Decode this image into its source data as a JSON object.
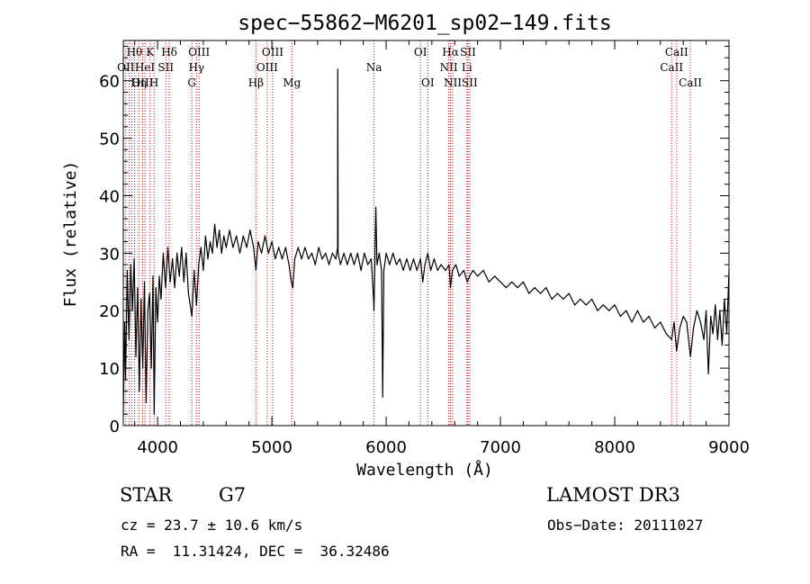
{
  "chart_data": {
    "type": "line",
    "title": "spec−55862−M6201_sp02−149.fits",
    "xlabel": "Wavelength (Å)",
    "ylabel": "Flux (relative)",
    "xlim": [
      3700,
      9000
    ],
    "ylim": [
      0,
      67
    ],
    "xticks": [
      4000,
      5000,
      6000,
      7000,
      8000,
      9000
    ],
    "yticks": [
      0,
      10,
      20,
      30,
      40,
      50,
      60
    ],
    "grid": false,
    "line_color": "#000000",
    "marker_color": "#cc0000",
    "series": [
      {
        "name": "flux",
        "points": [
          [
            3700,
            2
          ],
          [
            3712,
            18
          ],
          [
            3720,
            8
          ],
          [
            3735,
            27
          ],
          [
            3750,
            15
          ],
          [
            3765,
            28
          ],
          [
            3780,
            20
          ],
          [
            3795,
            29
          ],
          [
            3810,
            12
          ],
          [
            3825,
            24
          ],
          [
            3840,
            6
          ],
          [
            3855,
            22
          ],
          [
            3870,
            10
          ],
          [
            3885,
            25
          ],
          [
            3900,
            4
          ],
          [
            3915,
            20
          ],
          [
            3930,
            23
          ],
          [
            3945,
            10
          ],
          [
            3960,
            26
          ],
          [
            3970,
            2
          ],
          [
            3985,
            24
          ],
          [
            4000,
            18
          ],
          [
            4015,
            26
          ],
          [
            4030,
            22
          ],
          [
            4050,
            30
          ],
          [
            4070,
            24
          ],
          [
            4090,
            31
          ],
          [
            4110,
            25
          ],
          [
            4130,
            29
          ],
          [
            4150,
            24
          ],
          [
            4170,
            30
          ],
          [
            4190,
            26
          ],
          [
            4210,
            31
          ],
          [
            4230,
            25
          ],
          [
            4250,
            30
          ],
          [
            4270,
            23
          ],
          [
            4300,
            19
          ],
          [
            4320,
            27
          ],
          [
            4340,
            21
          ],
          [
            4360,
            28
          ],
          [
            4380,
            31
          ],
          [
            4400,
            27
          ],
          [
            4420,
            33
          ],
          [
            4440,
            29
          ],
          [
            4460,
            32
          ],
          [
            4480,
            30
          ],
          [
            4500,
            35
          ],
          [
            4520,
            31
          ],
          [
            4540,
            34
          ],
          [
            4560,
            30
          ],
          [
            4580,
            33
          ],
          [
            4600,
            31
          ],
          [
            4630,
            34
          ],
          [
            4660,
            31
          ],
          [
            4690,
            33
          ],
          [
            4720,
            30
          ],
          [
            4750,
            33
          ],
          [
            4780,
            31
          ],
          [
            4810,
            34
          ],
          [
            4840,
            31
          ],
          [
            4861,
            27
          ],
          [
            4880,
            32
          ],
          [
            4910,
            30
          ],
          [
            4940,
            33
          ],
          [
            4970,
            30
          ],
          [
            5000,
            32
          ],
          [
            5030,
            29
          ],
          [
            5060,
            31
          ],
          [
            5090,
            29
          ],
          [
            5120,
            31
          ],
          [
            5150,
            28
          ],
          [
            5170,
            25
          ],
          [
            5183,
            24
          ],
          [
            5200,
            29
          ],
          [
            5230,
            31
          ],
          [
            5260,
            29
          ],
          [
            5290,
            31
          ],
          [
            5320,
            29
          ],
          [
            5350,
            30
          ],
          [
            5380,
            28
          ],
          [
            5410,
            31
          ],
          [
            5440,
            29
          ],
          [
            5470,
            30
          ],
          [
            5500,
            28
          ],
          [
            5530,
            30
          ],
          [
            5560,
            29
          ],
          [
            5575,
            31
          ],
          [
            5577,
            62
          ],
          [
            5580,
            30
          ],
          [
            5600,
            28
          ],
          [
            5630,
            30
          ],
          [
            5660,
            28
          ],
          [
            5690,
            30
          ],
          [
            5720,
            28
          ],
          [
            5750,
            30
          ],
          [
            5780,
            27
          ],
          [
            5810,
            30
          ],
          [
            5840,
            28
          ],
          [
            5870,
            29
          ],
          [
            5890,
            22
          ],
          [
            5893,
            20
          ],
          [
            5896,
            23
          ],
          [
            5910,
            38
          ],
          [
            5920,
            28
          ],
          [
            5940,
            30
          ],
          [
            5960,
            27
          ],
          [
            5970,
            5
          ],
          [
            5980,
            27
          ],
          [
            6000,
            30
          ],
          [
            6030,
            28
          ],
          [
            6060,
            30
          ],
          [
            6090,
            28
          ],
          [
            6120,
            29
          ],
          [
            6150,
            27
          ],
          [
            6180,
            29
          ],
          [
            6210,
            27
          ],
          [
            6240,
            29
          ],
          [
            6270,
            27
          ],
          [
            6300,
            29
          ],
          [
            6320,
            25
          ],
          [
            6340,
            28
          ],
          [
            6364,
            30
          ],
          [
            6390,
            27
          ],
          [
            6420,
            29
          ],
          [
            6450,
            27
          ],
          [
            6480,
            28
          ],
          [
            6520,
            27
          ],
          [
            6550,
            28
          ],
          [
            6563,
            24
          ],
          [
            6580,
            27
          ],
          [
            6610,
            28
          ],
          [
            6640,
            26
          ],
          [
            6680,
            27
          ],
          [
            6710,
            25
          ],
          [
            6730,
            26
          ],
          [
            6760,
            27
          ],
          [
            6800,
            26
          ],
          [
            6850,
            27
          ],
          [
            6900,
            25
          ],
          [
            6950,
            26
          ],
          [
            7000,
            25
          ],
          [
            7050,
            24
          ],
          [
            7100,
            25
          ],
          [
            7150,
            24
          ],
          [
            7200,
            25
          ],
          [
            7250,
            23
          ],
          [
            7300,
            24
          ],
          [
            7350,
            23
          ],
          [
            7400,
            24
          ],
          [
            7450,
            22
          ],
          [
            7500,
            23
          ],
          [
            7550,
            22
          ],
          [
            7600,
            23
          ],
          [
            7650,
            21
          ],
          [
            7700,
            22
          ],
          [
            7750,
            21
          ],
          [
            7800,
            22
          ],
          [
            7850,
            20
          ],
          [
            7900,
            21
          ],
          [
            7950,
            20
          ],
          [
            8000,
            21
          ],
          [
            8050,
            19
          ],
          [
            8100,
            20
          ],
          [
            8150,
            18
          ],
          [
            8200,
            20
          ],
          [
            8250,
            18
          ],
          [
            8300,
            19
          ],
          [
            8350,
            17
          ],
          [
            8400,
            18
          ],
          [
            8450,
            16
          ],
          [
            8498,
            15
          ],
          [
            8520,
            18
          ],
          [
            8542,
            13
          ],
          [
            8570,
            17
          ],
          [
            8600,
            19
          ],
          [
            8630,
            18
          ],
          [
            8662,
            12
          ],
          [
            8690,
            17
          ],
          [
            8720,
            20
          ],
          [
            8750,
            18
          ],
          [
            8780,
            15
          ],
          [
            8800,
            20
          ],
          [
            8820,
            9
          ],
          [
            8840,
            19
          ],
          [
            8860,
            16
          ],
          [
            8880,
            21
          ],
          [
            8900,
            15
          ],
          [
            8920,
            20
          ],
          [
            8940,
            14
          ],
          [
            8960,
            22
          ],
          [
            8980,
            16
          ],
          [
            9000,
            27
          ]
        ]
      }
    ],
    "line_markers": [
      {
        "wave": 3722,
        "label": "OII",
        "row": 2
      },
      {
        "wave": 3750,
        "label": "",
        "row": 0
      },
      {
        "wave": 3771,
        "label": "",
        "row": 0
      },
      {
        "wave": 3798,
        "label": "Hθ",
        "row": 1
      },
      {
        "wave": 3835,
        "label": "Hη",
        "row": 3
      },
      {
        "wave": 3869,
        "label": "OIII",
        "row": 3
      },
      {
        "wave": 3889,
        "label": "HeI",
        "row": 2
      },
      {
        "wave": 3934,
        "label": "K",
        "row": 1
      },
      {
        "wave": 3969,
        "label": "H",
        "row": 3
      },
      {
        "wave": 4072,
        "label": "SII",
        "row": 2
      },
      {
        "wave": 4102,
        "label": "Hδ",
        "row": 1
      },
      {
        "wave": 4300,
        "label": "G",
        "row": 3
      },
      {
        "wave": 4340,
        "label": "Hγ",
        "row": 2
      },
      {
        "wave": 4363,
        "label": "OIII",
        "row": 1
      },
      {
        "wave": 4861,
        "label": "Hβ",
        "row": 3
      },
      {
        "wave": 4959,
        "label": "OIII",
        "row": 2
      },
      {
        "wave": 5007,
        "label": "OIII",
        "row": 1
      },
      {
        "wave": 5175,
        "label": "Mg",
        "row": 3
      },
      {
        "wave": 5894,
        "label": "Na",
        "row": 2
      },
      {
        "wave": 6300,
        "label": "OI",
        "row": 1
      },
      {
        "wave": 6364,
        "label": "OI",
        "row": 3
      },
      {
        "wave": 6548,
        "label": "NII",
        "row": 2
      },
      {
        "wave": 6563,
        "label": "Hα",
        "row": 1
      },
      {
        "wave": 6583,
        "label": "NII",
        "row": 3
      },
      {
        "wave": 6707,
        "label": "Li",
        "row": 2
      },
      {
        "wave": 6716,
        "label": "SII",
        "row": 1
      },
      {
        "wave": 6731,
        "label": "SII",
        "row": 3
      },
      {
        "wave": 8498,
        "label": "CaII",
        "row": 2
      },
      {
        "wave": 8542,
        "label": "CaII",
        "row": 1
      },
      {
        "wave": 8662,
        "label": "CaII",
        "row": 3
      }
    ]
  },
  "info": {
    "object_class": "STAR",
    "subclass": "G7",
    "survey": "LAMOST DR3",
    "redshift_text": "cz = 23.7 ± 10.6 km/s",
    "obs_date": "Obs−Date: 20111027",
    "coords": "RA =  11.31424, DEC =  36.32486"
  }
}
